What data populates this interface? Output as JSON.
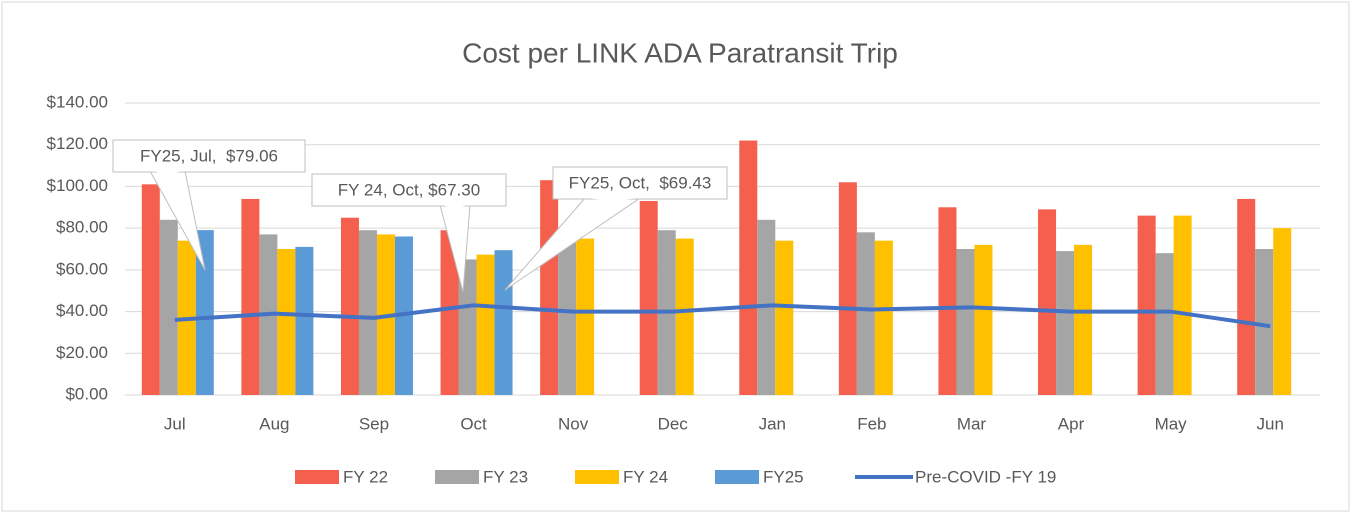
{
  "chart_data": {
    "type": "bar",
    "title": "Cost per LINK ADA Paratransit Trip",
    "categories": [
      "Jul",
      "Aug",
      "Sep",
      "Oct",
      "Nov",
      "Dec",
      "Jan",
      "Feb",
      "Mar",
      "Apr",
      "May",
      "Jun"
    ],
    "series": [
      {
        "name": "FY 22",
        "color": "#f4604d",
        "type": "bar",
        "values": [
          101,
          94,
          85,
          79,
          103,
          93,
          122,
          102,
          90,
          89,
          86,
          94
        ]
      },
      {
        "name": "FY 23",
        "color": "#a5a5a5",
        "type": "bar",
        "values": [
          84,
          77,
          79,
          65,
          73,
          79,
          84,
          78,
          70,
          69,
          68,
          70
        ]
      },
      {
        "name": "FY 24",
        "color": "#ffc000",
        "type": "bar",
        "values": [
          74,
          70,
          77,
          67.3,
          75,
          75,
          74,
          74,
          72,
          72,
          86,
          80
        ]
      },
      {
        "name": "FY25",
        "color": "#5b9bd5",
        "type": "bar",
        "values": [
          79.06,
          71,
          76,
          69.43,
          null,
          null,
          null,
          null,
          null,
          null,
          null,
          null
        ]
      },
      {
        "name": "Pre-COVID -FY 19",
        "color": "#4472c4",
        "type": "line",
        "values": [
          36,
          39,
          37,
          43,
          40,
          40,
          43,
          41,
          42,
          40,
          40,
          33
        ]
      }
    ],
    "ylim": [
      0,
      140
    ],
    "yticks": [
      {
        "value": 0,
        "label": "$0.00"
      },
      {
        "value": 20,
        "label": "$20.00"
      },
      {
        "value": 40,
        "label": "$40.00"
      },
      {
        "value": 60,
        "label": "$60.00"
      },
      {
        "value": 80,
        "label": "$80.00"
      },
      {
        "value": 100,
        "label": "$100.00"
      },
      {
        "value": 120,
        "label": "$120.00"
      },
      {
        "value": 140,
        "label": "$140.00"
      }
    ],
    "grid": true,
    "legend": "bottom",
    "annotations": [
      "FY25, Jul,  $79.06",
      "FY 24, Oct, $67.30",
      "FY25, Oct,  $69.43"
    ]
  }
}
